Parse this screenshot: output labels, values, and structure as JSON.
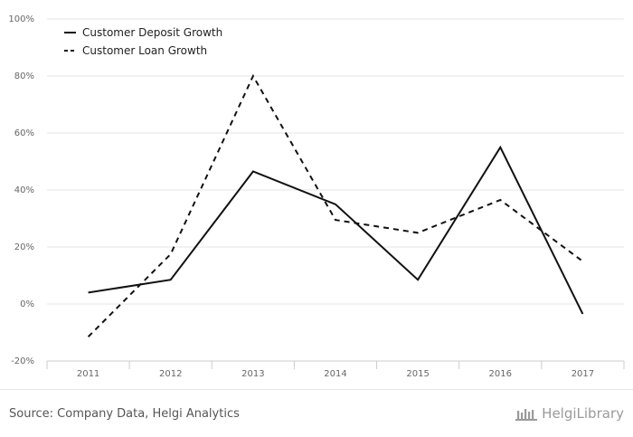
{
  "chart_data": {
    "type": "line",
    "x": [
      "2011",
      "2012",
      "2013",
      "2014",
      "2015",
      "2016",
      "2017"
    ],
    "yticks": [
      "-20%",
      "0%",
      "20%",
      "40%",
      "60%",
      "80%",
      "100%"
    ],
    "ylim": [
      -20,
      100
    ],
    "grid": true,
    "legend_position": "top-left",
    "series": [
      {
        "name": "Customer Deposit Growth",
        "style": "solid",
        "color": "#111111",
        "values": [
          4,
          8.5,
          46.5,
          35,
          8.5,
          55,
          -3.5
        ]
      },
      {
        "name": "Customer Loan Growth",
        "style": "dashed",
        "color": "#111111",
        "values": [
          -11.5,
          17.5,
          80,
          29.5,
          25,
          36.5,
          15
        ]
      }
    ]
  },
  "footer": {
    "source": "Source: Company Data, Helgi Analytics",
    "brand_name": "HelgiLibrary"
  }
}
